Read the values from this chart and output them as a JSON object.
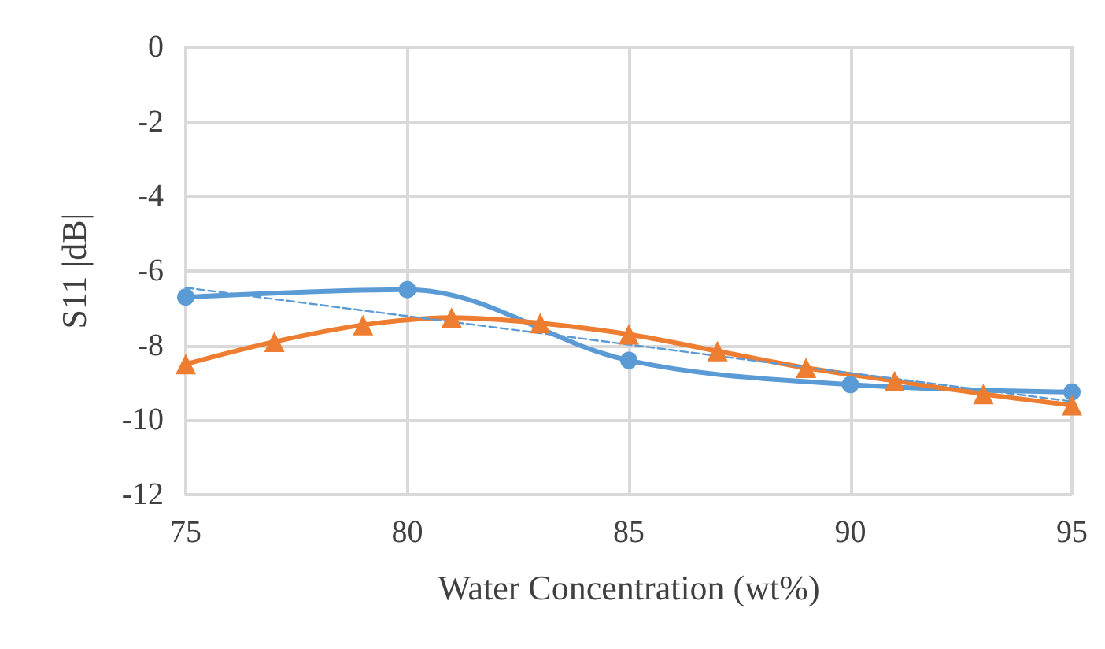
{
  "chart_data": {
    "type": "line",
    "xlabel": "Water Concentration (wt%)",
    "ylabel": "S11 |dB|",
    "xlim": [
      75,
      95
    ],
    "xticks": [
      75,
      80,
      85,
      90,
      95
    ],
    "ylim": [
      -12,
      0
    ],
    "yticks": [
      -12,
      -10,
      -8,
      -6,
      -4,
      -2,
      0
    ],
    "grid": true,
    "series": [
      {
        "color": "#5b9bd5",
        "marker": "circle",
        "line_style": "solid",
        "x": [
          75,
          80,
          85,
          90,
          95
        ],
        "values": [
          -6.7,
          -6.5,
          -8.4,
          -9.05,
          -9.25
        ]
      },
      {
        "color": "#ed7d31",
        "marker": "triangle",
        "line_style": "solid",
        "x": [
          75,
          77,
          79,
          81,
          83,
          85,
          87,
          89,
          91,
          93,
          95
        ],
        "values": [
          -8.5,
          -7.9,
          -7.45,
          -7.25,
          -7.4,
          -7.7,
          -8.15,
          -8.6,
          -8.95,
          -9.3,
          -9.6
        ]
      },
      {
        "color": "#5b9bd5",
        "marker": "none",
        "line_style": "dashed",
        "x": [
          75,
          95
        ],
        "values": [
          -6.45,
          -9.5
        ]
      }
    ]
  }
}
